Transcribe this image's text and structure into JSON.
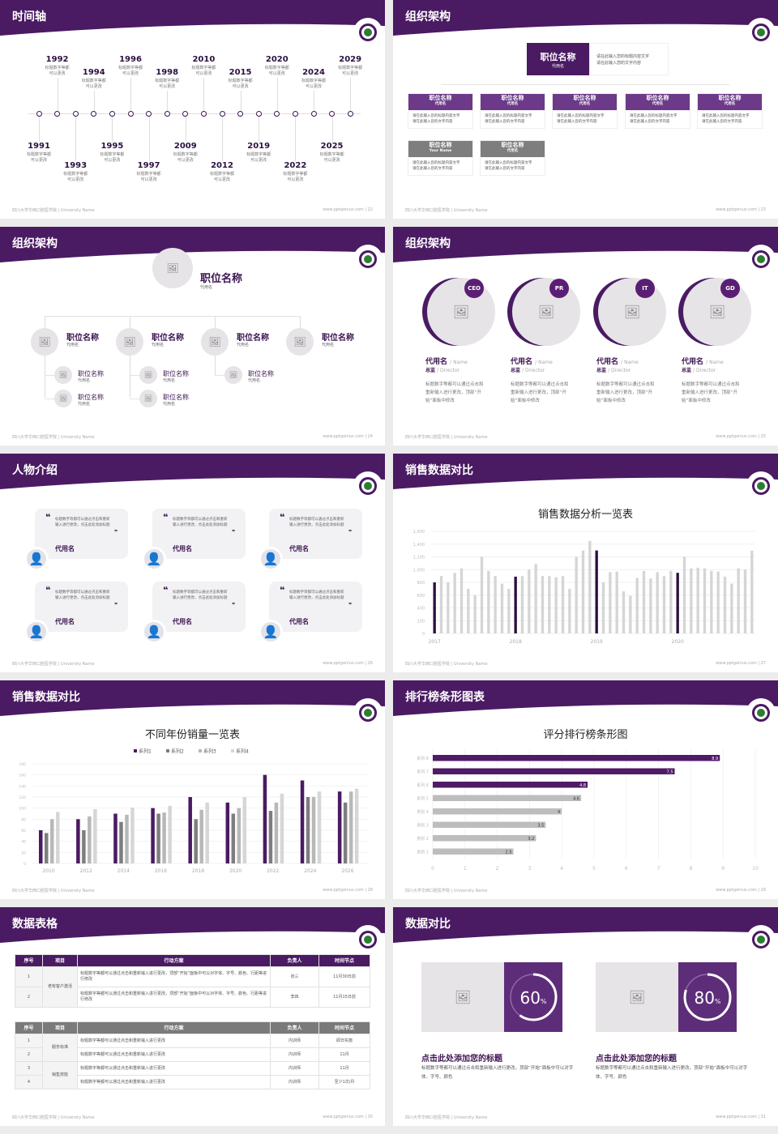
{
  "footer": {
    "school": "四川大学华西口腔医学院 | University Name",
    "site": "www.pptgenius.com"
  },
  "colors": {
    "primary": "#4a1a63",
    "secondary": "#6c3a88",
    "gray": "#7e7e7e",
    "light": "#cfcfcf"
  },
  "slides": [
    {
      "title": "时间轴",
      "page": "22",
      "timeline": [
        {
          "year": "1991",
          "text": [
            "标题数字等都",
            "可以更改"
          ]
        },
        {
          "year": "1992",
          "text": [
            "标题数字等都",
            "可以更改"
          ]
        },
        {
          "year": "1993",
          "text": [
            "标题数字等都",
            "可以更改"
          ]
        },
        {
          "year": "1994",
          "text": [
            "标题数字等都",
            "可以更改"
          ]
        },
        {
          "year": "1995",
          "text": [
            "标题数字等都",
            "可以更改"
          ]
        },
        {
          "year": "1996",
          "text": [
            "标题数字等都",
            "可以更改"
          ]
        },
        {
          "year": "1997",
          "text": [
            "标题数字等都",
            "可以更改"
          ]
        },
        {
          "year": "1998",
          "text": [
            "标题数字等都",
            "可以更改"
          ]
        },
        {
          "year": "2009",
          "text": [
            "标题数字等都",
            "可以更改"
          ]
        },
        {
          "year": "2010",
          "text": [
            "标题数字等都",
            "可以更改"
          ]
        },
        {
          "year": "2012",
          "text": [
            "标题数字等都",
            "可以更改"
          ]
        },
        {
          "year": "2015",
          "text": [
            "标题数字等都",
            "可以更改"
          ]
        },
        {
          "year": "2019",
          "text": [
            "标题数字等都",
            "可以更改"
          ]
        },
        {
          "year": "2020",
          "text": [
            "标题数字等都",
            "可以更改"
          ]
        },
        {
          "year": "2022",
          "text": [
            "标题数字等都",
            "可以更改"
          ]
        },
        {
          "year": "2024",
          "text": [
            "标题数字等都",
            "可以更改"
          ]
        },
        {
          "year": "2025",
          "text": [
            "标题数字等都",
            "可以更改"
          ]
        },
        {
          "year": "2029",
          "text": [
            "标题数字等都",
            "可以更改"
          ]
        }
      ]
    },
    {
      "title": "组织架构",
      "page": "23",
      "top": {
        "name": "职位名称",
        "sub": "代用名",
        "desc": [
          "请在此输入您的标题内容文字",
          "请在此输入您的文字内容"
        ]
      },
      "boxes": [
        {
          "name": "职位名称",
          "sub": "代用名",
          "desc": [
            "请在此输入您的标题内容文字",
            "请在此输入您的文字内容"
          ]
        },
        {
          "name": "职位名称",
          "sub": "代用名",
          "desc": [
            "请在此输入您的标题内容文字",
            "请在此输入您的文字内容"
          ]
        },
        {
          "name": "职位名称",
          "sub": "代用名",
          "desc": [
            "请在此输入您的标题内容文字",
            "请在此输入您的文字内容"
          ]
        },
        {
          "name": "职位名称",
          "sub": "代用名",
          "desc": [
            "请在此输入您的标题内容文字",
            "请在此输入您的文字内容"
          ]
        },
        {
          "name": "职位名称",
          "sub": "代用名",
          "desc": [
            "请在此输入您的标题内容文字",
            "请在此输入您的文字内容"
          ]
        },
        {
          "name": "职位名称",
          "sub": "Your Name",
          "desc": [
            "请在此输入您的标题内容文字",
            "请在此输入您的文字内容"
          ],
          "gray": true
        },
        {
          "name": "职位名称",
          "sub": "代用名",
          "desc": [
            "请在此输入您的标题内容文字",
            "请在此输入您的文字内容"
          ],
          "gray": true
        }
      ]
    },
    {
      "title": "组织架构",
      "page": "24",
      "top": {
        "name": "职位名称",
        "sub": "代用名"
      },
      "level2": [
        {
          "name": "职位名称",
          "sub": "代用名",
          "children": [
            {
              "name": "职位名称",
              "sub": "代用名"
            },
            {
              "name": "职位名称",
              "sub": "代用名"
            }
          ]
        },
        {
          "name": "职位名称",
          "sub": "代用名",
          "children": [
            {
              "name": "职位名称",
              "sub": "代用名"
            },
            {
              "name": "职位名称",
              "sub": "代用名"
            }
          ]
        },
        {
          "name": "职位名称",
          "sub": "代用名",
          "children": [
            {
              "name": "职位名称",
              "sub": "代用名"
            }
          ]
        },
        {
          "name": "职位名称",
          "sub": "代用名",
          "children": []
        }
      ]
    },
    {
      "title": "组织架构",
      "page": "25",
      "members": [
        {
          "badge": "CEO",
          "name": "代用名",
          "name_en": "/ Name",
          "role": "总监",
          "role_en": "/ Director",
          "desc": "标题数字等都可以通过点击和重新输入进行更改，顶部“开始”面板中修改"
        },
        {
          "badge": "PR",
          "name": "代用名",
          "name_en": "/ Name",
          "role": "总监",
          "role_en": "/ Director",
          "desc": "标题数字等都可以通过点击和重新输入进行更改，顶部“开始”面板中修改"
        },
        {
          "badge": "IT",
          "name": "代用名",
          "name_en": "/ Name",
          "role": "总监",
          "role_en": "/ Director",
          "desc": "标题数字等都可以通过点击和重新输入进行更改，顶部“开始”面板中修改"
        },
        {
          "badge": "GD",
          "name": "代用名",
          "name_en": "/ Name",
          "role": "总监",
          "role_en": "/ Director",
          "desc": "标题数字等都可以通过点击和重新输入进行更改，顶部“开始”面板中修改"
        }
      ]
    },
    {
      "title": "人物介绍",
      "page": "26",
      "quotes": [
        {
          "text": "标题数字等都可以通过点击和重新输入进行更改，点击此处添加标题",
          "name": "代用名"
        },
        {
          "text": "标题数字等都可以通过点击和重新输入进行更改，点击此处添加标题",
          "name": "代用名"
        },
        {
          "text": "标题数字等都可以通过点击和重新输入进行更改，点击此处添加标题",
          "name": "代用名"
        },
        {
          "text": "标题数字等都可以通过点击和重新输入进行更改，点击此处添加标题",
          "name": "代用名"
        },
        {
          "text": "标题数字等都可以通过点击和重新输入进行更改，点击此处添加标题",
          "name": "代用名"
        },
        {
          "text": "标题数字等都可以通过点击和重新输入进行更改，点击此处添加标题",
          "name": "代用名"
        }
      ]
    },
    {
      "title": "销售数据对比",
      "page": "27"
    },
    {
      "title": "销售数据对比",
      "page": "28"
    },
    {
      "title": "排行榜条形图表",
      "page": "29"
    },
    {
      "title": "数据表格",
      "page": "30",
      "table1": {
        "headers": [
          "序号",
          "项目",
          "行动方案",
          "负责人",
          "时间节点"
        ],
        "group": "老有客户激活",
        "rows": [
          {
            "no": "1",
            "plan": "标题数字等都可以通过点击和重新输入进行更改，顶部“开始”面板中可以对字体、字号、颜色、行距等进行修改",
            "owner": "张三",
            "time": "11月30日前"
          },
          {
            "no": "2",
            "plan": "标题数字等都可以通过点击和重新输入进行更改，顶部“开始”面板中可以对字体、字号、颜色、行距等进行修改",
            "owner": "李四",
            "time": "11月15日前"
          }
        ]
      },
      "table2": {
        "headers": [
          "序号",
          "项目",
          "行动方案",
          "负责人",
          "时间节点"
        ],
        "groups": [
          "服务标准",
          "销售技能"
        ],
        "rows": [
          {
            "no": "1",
            "plan": "标题数字等都可以通过点击和重新输入进行更改",
            "owner": "内训师",
            "time": "即日实施"
          },
          {
            "no": "2",
            "plan": "标题数字等都可以通过点击和重新输入进行更改",
            "owner": "内训师",
            "time": "11月"
          },
          {
            "no": "3",
            "plan": "标题数字等都可以通过点击和重新输入进行更改",
            "owner": "内训师",
            "time": "11月"
          },
          {
            "no": "4",
            "plan": "标题数字等都可以通过点击和重新输入进行更改",
            "owner": "内训师",
            "time": "至少1次/月"
          }
        ]
      }
    },
    {
      "title": "数据对比",
      "page": "31",
      "panels": [
        {
          "percent": 60,
          "value": "60",
          "unit": "%",
          "title": "点击此处添加您的标题",
          "desc": "标题数字等都可以通过点击和重新输入进行更改，顶部“开始”面板中可以对字体、字号、颜色"
        },
        {
          "percent": 80,
          "value": "80",
          "unit": "%",
          "title": "点击此处添加您的标题",
          "desc": "标题数字等都可以通过点击和重新输入进行更改，顶部“开始”面板中可以对字体、字号、颜色"
        }
      ]
    }
  ],
  "chart_data": [
    {
      "type": "bar",
      "title": "销售数据分析一览表",
      "ylim": [
        0,
        1600
      ],
      "yticks": [
        "0",
        "200",
        "400",
        "600",
        "800",
        "1,000",
        "1,200",
        "1,400",
        "1,600"
      ],
      "xlabels": [
        "2017",
        "2018",
        "2019",
        "2020"
      ],
      "highlight_every": 12,
      "grid": true,
      "values": [
        800,
        900,
        800,
        950,
        1020,
        700,
        600,
        1200,
        980,
        900,
        780,
        700,
        890,
        900,
        1000,
        1090,
        900,
        900,
        880,
        900,
        700,
        1200,
        1300,
        1450,
        1300,
        800,
        960,
        970,
        660,
        590,
        870,
        980,
        860,
        960,
        900,
        980,
        950,
        1200,
        1020,
        1030,
        1020,
        980,
        970,
        890,
        780,
        1020,
        1000,
        1300
      ]
    },
    {
      "type": "bar",
      "title": "不同年份销量一览表",
      "ylim": [
        0,
        180
      ],
      "yticks": [
        "0",
        "20",
        "40",
        "60",
        "80",
        "100",
        "120",
        "140",
        "160",
        "180"
      ],
      "categories": [
        "2010",
        "2012",
        "2014",
        "2016",
        "2018",
        "2020",
        "2022",
        "2024",
        "2026"
      ],
      "legend": "top",
      "series": [
        {
          "name": "系列1",
          "color": "#4a1a63",
          "values": [
            60,
            80,
            90,
            100,
            120,
            110,
            160,
            150,
            130
          ]
        },
        {
          "name": "系列2",
          "color": "#7e7e7e",
          "values": [
            55,
            60,
            75,
            90,
            80,
            90,
            95,
            120,
            110
          ]
        },
        {
          "name": "系列3",
          "color": "#b8b8b8",
          "values": [
            80,
            85,
            88,
            92,
            97,
            100,
            110,
            120,
            130
          ]
        },
        {
          "name": "系列4",
          "color": "#d6d6d6",
          "values": [
            93,
            98,
            101,
            104,
            110,
            120,
            126,
            130,
            135
          ]
        }
      ]
    },
    {
      "type": "bar",
      "orientation": "horizontal",
      "title": "评分排行榜条形图",
      "xlim": [
        0,
        10
      ],
      "xticks": [
        "0",
        "1",
        "2",
        "3",
        "4",
        "5",
        "6",
        "7",
        "8",
        "9",
        "10"
      ],
      "categories": [
        "系列 8",
        "系列 7",
        "系列 6",
        "系列 5",
        "类别 4",
        "类别 3",
        "类别 2",
        "类别 1"
      ],
      "values": [
        8.9,
        7.5,
        4.8,
        4.6,
        4,
        3.5,
        3.2,
        2.5
      ],
      "labels": [
        "8.9",
        "7.5",
        "4.8",
        "4.6",
        "4",
        "3.5",
        "3.2",
        "2.5"
      ],
      "highlight_top": 3
    }
  ]
}
